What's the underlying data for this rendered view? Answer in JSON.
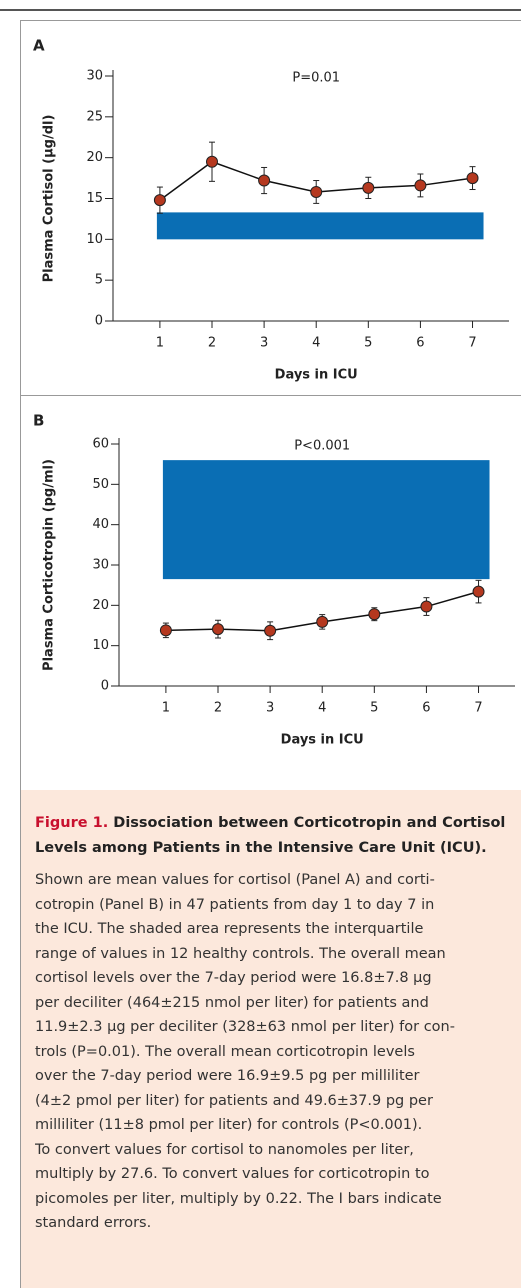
{
  "chart_data": [
    {
      "type": "line",
      "panel": "A",
      "annotation": "P=0.01",
      "y_label": "Plasma Cortisol (µg/dl)",
      "x_label": "Days in ICU",
      "x": [
        1,
        2,
        3,
        4,
        5,
        6,
        7
      ],
      "xlim": [
        0.1,
        7.7
      ],
      "xticks": [
        1,
        2,
        3,
        4,
        5,
        6,
        7
      ],
      "values": [
        14.8,
        19.5,
        17.2,
        15.8,
        16.3,
        16.6,
        17.5
      ],
      "errors": [
        1.6,
        2.4,
        1.6,
        1.4,
        1.3,
        1.4,
        1.4
      ],
      "band": [
        10,
        13.3
      ],
      "band_color": "#0a6eb4",
      "color": "#b5381f",
      "ylim": [
        0,
        30
      ],
      "yticks": [
        0,
        5,
        10,
        15,
        20,
        25,
        30
      ]
    },
    {
      "type": "line",
      "panel": "B",
      "annotation": "P<0.001",
      "y_label": "Plasma Corticotropin (pg/ml)",
      "x_label": "Days in ICU",
      "x": [
        1,
        2,
        3,
        4,
        5,
        6,
        7
      ],
      "xlim": [
        0.1,
        7.7
      ],
      "xticks": [
        1,
        2,
        3,
        4,
        5,
        6,
        7
      ],
      "values": [
        13.8,
        14.1,
        13.7,
        15.9,
        17.8,
        19.7,
        23.4
      ],
      "errors": [
        1.8,
        2.2,
        2.2,
        1.8,
        1.6,
        2.2,
        2.8
      ],
      "band": [
        26.5,
        56
      ],
      "band_color": "#0a6eb4",
      "color": "#b5381f",
      "ylim": [
        0,
        60
      ],
      "yticks": [
        0,
        10,
        20,
        30,
        40,
        50,
        60
      ]
    }
  ],
  "caption": {
    "label": "Figure 1.",
    "title_lines": [
      "Dissociation between Corticotropin and Cortisol",
      "Levels among Patients in the Intensive Care Unit (ICU)."
    ],
    "body_lines": [
      "Shown are mean values for cortisol (Panel A) and corti-",
      "cotropin (Panel B) in 47 patients from day 1 to day 7 in",
      "the ICU. The shaded area represents the interquartile",
      "range of values in 12 healthy controls. The overall mean",
      "cortisol levels over the 7-day period were 16.8±7.8 µg",
      "per deciliter (464±215 nmol per liter) for patients and",
      "11.9±2.3 µg per deciliter (328±63 nmol per liter) for con-",
      "trols (P=0.01). The overall mean corticotropin levels",
      "over the 7-day period were 16.9±9.5 pg per milliliter",
      "(4±2 pmol per liter) for patients and 49.6±37.9 pg per",
      "milliliter (11±8 pmol per liter) for controls (P<0.001).",
      "To convert values for cortisol to nanomoles per liter,",
      "multiply by 27.6. To convert values for corticotropin to",
      "picomoles per liter, multiply by 0.22. The I bars indicate",
      "standard errors."
    ]
  }
}
